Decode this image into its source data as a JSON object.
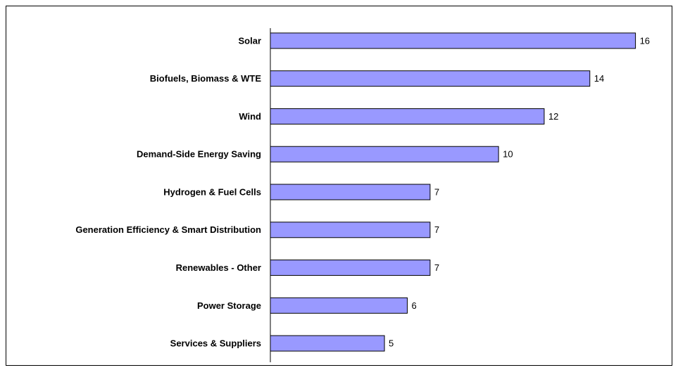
{
  "chart_data": {
    "type": "bar",
    "orientation": "horizontal",
    "categories": [
      "Solar",
      "Biofuels, Biomass & WTE",
      "Wind",
      "Demand-Side Energy Saving",
      "Hydrogen & Fuel Cells",
      "Generation Efficiency & Smart Distribution",
      "Renewables - Other",
      "Power Storage",
      "Services & Suppliers"
    ],
    "values": [
      16,
      14,
      12,
      10,
      7,
      7,
      7,
      6,
      5
    ],
    "color": "#9999ff",
    "xlim": [
      0,
      17
    ]
  }
}
